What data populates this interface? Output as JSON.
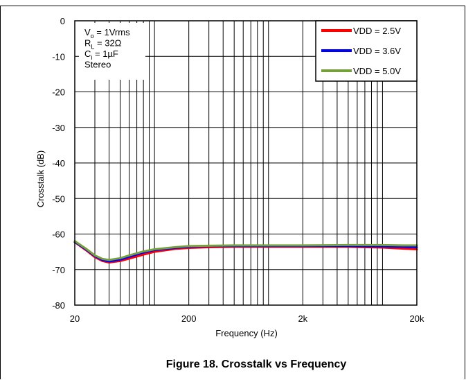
{
  "figure": {
    "caption": "Figure 18. Crosstalk vs Frequency"
  },
  "chart_data": {
    "type": "line",
    "title": "",
    "xlabel": "Frequency (Hz)",
    "ylabel": "Crosstalk (dB)",
    "xscale": "log",
    "xlim": [
      20,
      20000
    ],
    "ylim": [
      -80,
      0
    ],
    "grid": true,
    "legend_position": "top-right",
    "x_ticks": [
      {
        "value": 20,
        "label": "20"
      },
      {
        "value": 200,
        "label": "200"
      },
      {
        "value": 2000,
        "label": "2k"
      },
      {
        "value": 20000,
        "label": "20k"
      }
    ],
    "y_ticks": [
      {
        "value": 0,
        "label": "0"
      },
      {
        "value": -10,
        "label": "-10"
      },
      {
        "value": -20,
        "label": "-20"
      },
      {
        "value": -30,
        "label": "-30"
      },
      {
        "value": -40,
        "label": "-40"
      },
      {
        "value": -50,
        "label": "-50"
      },
      {
        "value": -60,
        "label": "-60"
      },
      {
        "value": -70,
        "label": "-70"
      },
      {
        "value": -80,
        "label": "-80"
      }
    ],
    "annotation": {
      "lines": [
        {
          "main": "V",
          "sub": "o",
          "rest": " = 1Vrms"
        },
        {
          "main": "R",
          "sub": "L",
          "rest": " = 32Ω"
        },
        {
          "main": "C",
          "sub": "i",
          "rest": " = 1µF"
        },
        {
          "main": "Stereo",
          "sub": "",
          "rest": ""
        }
      ]
    },
    "series": [
      {
        "name": "VDD = 2.5V",
        "color": "#ff0000",
        "x": [
          20,
          25,
          30,
          35,
          40,
          50,
          60,
          80,
          100,
          150,
          200,
          300,
          500,
          1000,
          2000,
          5000,
          10000,
          15000,
          20000
        ],
        "y": [
          -62.3,
          -64.5,
          -66.5,
          -67.6,
          -68.0,
          -67.6,
          -66.9,
          -65.8,
          -65.0,
          -64.2,
          -63.9,
          -63.7,
          -63.6,
          -63.6,
          -63.6,
          -63.6,
          -63.8,
          -64.1,
          -64.3
        ]
      },
      {
        "name": "VDD = 3.6V",
        "color": "#0000ff",
        "x": [
          20,
          25,
          30,
          35,
          40,
          50,
          60,
          80,
          100,
          150,
          200,
          300,
          500,
          1000,
          2000,
          5000,
          10000,
          15000,
          20000
        ],
        "y": [
          -62.2,
          -64.3,
          -66.2,
          -67.3,
          -67.7,
          -67.2,
          -66.4,
          -65.2,
          -64.5,
          -63.9,
          -63.6,
          -63.4,
          -63.4,
          -63.4,
          -63.4,
          -63.4,
          -63.5,
          -63.6,
          -63.7
        ]
      },
      {
        "name": "VDD = 5.0V",
        "color": "#76a03c",
        "x": [
          20,
          25,
          30,
          35,
          40,
          50,
          60,
          80,
          100,
          150,
          200,
          300,
          500,
          1000,
          2000,
          5000,
          10000,
          15000,
          20000
        ],
        "y": [
          -62.0,
          -64.1,
          -66.0,
          -67.0,
          -67.3,
          -66.8,
          -66.0,
          -64.9,
          -64.3,
          -63.7,
          -63.4,
          -63.3,
          -63.2,
          -63.2,
          -63.2,
          -63.1,
          -63.1,
          -63.2,
          -63.2
        ]
      }
    ]
  }
}
